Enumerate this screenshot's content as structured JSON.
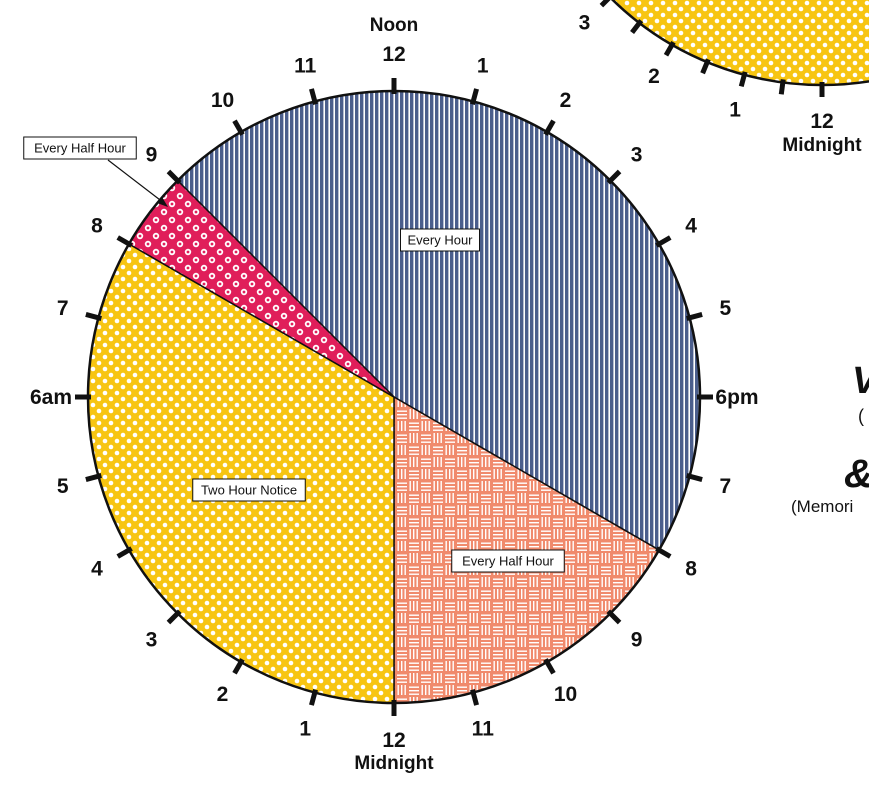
{
  "chart_data": {
    "type": "pie",
    "description_labels": {
      "top": "Noon",
      "bottom": "Midnight",
      "left_suffix": "am",
      "right_suffix": "pm"
    },
    "clock_labels": [
      {
        "hour": 0,
        "text": "12",
        "sub": "Midnight"
      },
      {
        "hour": 1,
        "text": "1"
      },
      {
        "hour": 2,
        "text": "2"
      },
      {
        "hour": 3,
        "text": "3"
      },
      {
        "hour": 4,
        "text": "4"
      },
      {
        "hour": 5,
        "text": "5"
      },
      {
        "hour": 6,
        "text": "6am"
      },
      {
        "hour": 7,
        "text": "7"
      },
      {
        "hour": 8,
        "text": "8"
      },
      {
        "hour": 9,
        "text": "9"
      },
      {
        "hour": 10,
        "text": "10"
      },
      {
        "hour": 11,
        "text": "11"
      },
      {
        "hour": 12,
        "text": "12",
        "sub": "Noon"
      },
      {
        "hour": 13,
        "text": "1"
      },
      {
        "hour": 14,
        "text": "2"
      },
      {
        "hour": 15,
        "text": "3"
      },
      {
        "hour": 16,
        "text": "4"
      },
      {
        "hour": 17,
        "text": "5"
      },
      {
        "hour": 18,
        "text": "6pm"
      },
      {
        "hour": 19,
        "text": "7"
      },
      {
        "hour": 20,
        "text": "8"
      },
      {
        "hour": 21,
        "text": "9"
      },
      {
        "hour": 22,
        "text": "10"
      },
      {
        "hour": 23,
        "text": "11"
      }
    ],
    "segments": [
      {
        "label": "Every Hour",
        "start_hour": 9,
        "end_hour": 20,
        "color": "#4b5e8c",
        "pattern": "stripes"
      },
      {
        "label": "Every Half Hour",
        "start_hour": 20,
        "end_hour": 24,
        "color": "#f08a6c",
        "pattern": "weave"
      },
      {
        "label": "Two Hour Notice",
        "start_hour": 0,
        "end_hour": 8,
        "color": "#f7c512",
        "pattern": "dots"
      },
      {
        "label": "Every Half Hour",
        "start_hour": 8,
        "end_hour": 9,
        "color": "#e01e5a",
        "pattern": "rings"
      }
    ]
  },
  "second_chart": {
    "visible_labels": [
      {
        "hour": 0,
        "text": "12",
        "sub": "Midnight"
      },
      {
        "hour": 1,
        "text": "1"
      },
      {
        "hour": 2,
        "text": "2"
      },
      {
        "hour": 3,
        "text": "3"
      }
    ],
    "color": "#f7c512"
  },
  "right_fragments": {
    "big_letter": "V",
    "small_paren": "(",
    "ampersand": "&",
    "memorial_fragment": "(Memori"
  }
}
